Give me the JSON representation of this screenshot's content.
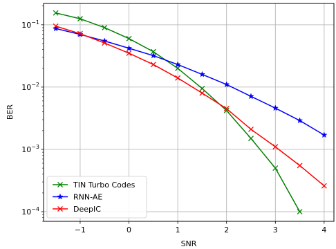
{
  "chart_data": {
    "type": "line",
    "title": "",
    "xlabel": "SNR",
    "ylabel": "BER",
    "xlim": [
      -1.75,
      4.2
    ],
    "ylim": [
      7e-05,
      0.22
    ],
    "yscale": "log",
    "grid": true,
    "legend_position": "bottom-left",
    "xticks": [
      -1,
      0,
      1,
      2,
      3,
      4
    ],
    "xtick_labels": [
      "−1",
      "0",
      "1",
      "2",
      "3",
      "4"
    ],
    "yticks": [
      0.0001,
      0.001,
      0.01,
      0.1
    ],
    "ytick_base": "10",
    "ytick_exponents": [
      "−4",
      "−3",
      "−2",
      "−1"
    ],
    "series": [
      {
        "name": "TIN Turbo Codes",
        "color": "#008000",
        "marker": "x",
        "x": [
          -1.5,
          -1.0,
          -0.5,
          0.0,
          0.5,
          1.0,
          1.5,
          2.0,
          2.5,
          3.0,
          3.5
        ],
        "y": [
          0.155,
          0.125,
          0.09,
          0.06,
          0.037,
          0.02,
          0.0095,
          0.0042,
          0.0015,
          0.0005,
          0.0001
        ]
      },
      {
        "name": "RNN-AE",
        "color": "#0000ff",
        "marker": "*",
        "x": [
          -1.5,
          -1.0,
          -0.5,
          0.0,
          0.5,
          1.0,
          1.5,
          2.0,
          2.5,
          3.0,
          3.5,
          4.0
        ],
        "y": [
          0.087,
          0.07,
          0.055,
          0.042,
          0.032,
          0.023,
          0.016,
          0.011,
          0.0071,
          0.0046,
          0.0029,
          0.0017
        ]
      },
      {
        "name": "DeepIC",
        "color": "#ff0000",
        "marker": "x",
        "x": [
          -1.5,
          -1.0,
          -0.5,
          0.0,
          0.5,
          1.0,
          1.5,
          2.0,
          2.5,
          3.0,
          3.5,
          4.0
        ],
        "y": [
          0.095,
          0.072,
          0.051,
          0.035,
          0.023,
          0.014,
          0.008,
          0.0045,
          0.0021,
          0.0011,
          0.00055,
          0.00026
        ]
      }
    ]
  }
}
